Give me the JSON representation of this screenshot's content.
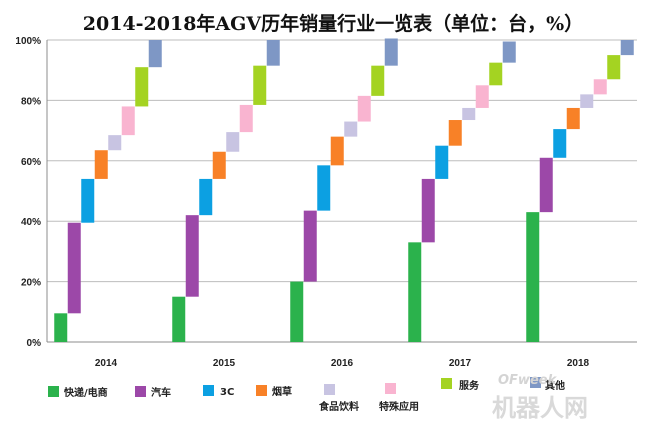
{
  "chart_data": {
    "type": "bar",
    "title": "2014-2018年AGV历年销量行业一览表（单位：台，%）",
    "xlabel": "",
    "ylabel": "",
    "ylim": [
      0,
      100
    ],
    "y_ticks": [
      "0%",
      "20%",
      "40%",
      "60%",
      "80%",
      "100%"
    ],
    "categories": [
      "2014",
      "2015",
      "2016",
      "2017",
      "2018"
    ],
    "grid": true,
    "legend_position": "bottom",
    "stacking": "cascading",
    "series": [
      {
        "name": "快递/电商",
        "color": "#2bb24c",
        "values": [
          9.5,
          15,
          20,
          33,
          43
        ]
      },
      {
        "name": "汽车",
        "color": "#9c48a8",
        "values": [
          30,
          27,
          23.5,
          21,
          18
        ]
      },
      {
        "name": "3C",
        "color": "#0ca0e2",
        "values": [
          14.5,
          12,
          15,
          11,
          9.5
        ]
      },
      {
        "name": "烟草",
        "color": "#f88127",
        "values": [
          9.5,
          9,
          9.5,
          8.5,
          7
        ]
      },
      {
        "name": "食品饮料",
        "color": "#c8c4e2",
        "values": [
          5,
          6.5,
          5,
          4,
          4.5
        ]
      },
      {
        "name": "特殊应用",
        "color": "#f9b4d0",
        "values": [
          9.5,
          9,
          8.5,
          7.5,
          5
        ]
      },
      {
        "name": "服务",
        "color": "#a4d322",
        "values": [
          13,
          13,
          10,
          7.5,
          8
        ]
      },
      {
        "name": "其他",
        "color": "#7e97c5",
        "values": [
          9,
          8.5,
          9,
          7,
          5
        ]
      }
    ]
  },
  "watermark": {
    "small": "OFweek",
    "large": "机器人网"
  }
}
